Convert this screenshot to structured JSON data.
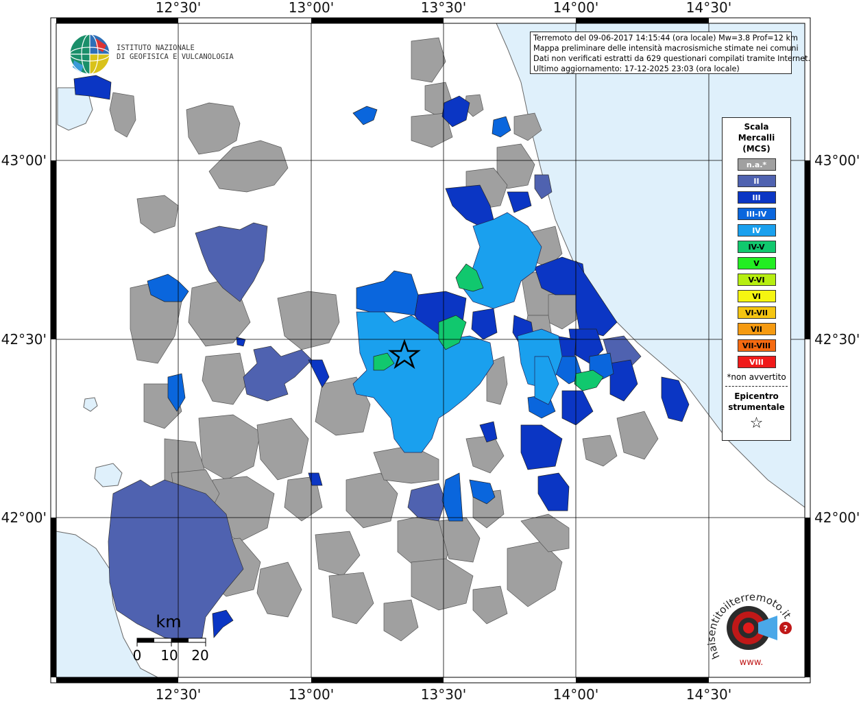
{
  "info": {
    "line1": "Terremoto del 09-06-2017 14:15:44 (ora locale) Mw=3.8 Prof=12 km",
    "line2": "Mappa preliminare delle intensità macrosismiche stimate nei comuni",
    "line3": "Dati non verificati estratti da 629 questionari compilati tramite Internet.",
    "line4": "Ultimo aggiornamento: 17-12-2025 23:03 (ora locale)"
  },
  "institute": {
    "line1": "ISTITUTO NAZIONALE",
    "line2": "DI GEOFISICA E VULCANOLOGIA"
  },
  "axes": {
    "top_ticks": [
      "12°30'",
      "13°00'",
      "13°30'",
      "14°00'",
      "14°30'"
    ],
    "bottom_ticks": [
      "12°30'",
      "13°00'",
      "13°30'",
      "14°00'",
      "14°30'"
    ],
    "left_ticks": [
      "43°00'",
      "42°30'",
      "42°00'"
    ],
    "right_ticks": [
      "43°00'",
      "42°30'",
      "42°00'"
    ]
  },
  "legend": {
    "title1": "Scala",
    "title2": "Mercalli",
    "title3": "(MCS)",
    "items": [
      {
        "label": "n.a.*",
        "color": "#a0a0a0",
        "text_color": "#ffffff"
      },
      {
        "label": "II",
        "color": "#4f62b0",
        "text_color": "#ffffff"
      },
      {
        "label": "III",
        "color": "#0b36c4",
        "text_color": "#ffffff"
      },
      {
        "label": "III-IV",
        "color": "#0a66dd",
        "text_color": "#ffffff"
      },
      {
        "label": "IV",
        "color": "#1aa0ee",
        "text_color": "#ffffff"
      },
      {
        "label": "IV-V",
        "color": "#11c86e",
        "text_color": "#000000"
      },
      {
        "label": "V",
        "color": "#22ee22",
        "text_color": "#000000"
      },
      {
        "label": "V-VI",
        "color": "#b6ee11",
        "text_color": "#000000"
      },
      {
        "label": "VI",
        "color": "#f5f511",
        "text_color": "#000000"
      },
      {
        "label": "VI-VII",
        "color": "#f5c511",
        "text_color": "#000000"
      },
      {
        "label": "VII",
        "color": "#f59a11",
        "text_color": "#000000"
      },
      {
        "label": "VII-VIII",
        "color": "#f56a11",
        "text_color": "#000000"
      },
      {
        "label": "VIII",
        "color": "#f01a1a",
        "text_color": "#ffffff"
      }
    ],
    "note": "*non avvertito",
    "epicenter1": "Epicentro",
    "epicenter2": "strumentale",
    "epicenter_symbol": "☆"
  },
  "scale": {
    "unit": "km",
    "labels": [
      "0",
      "10",
      "20"
    ]
  },
  "site_logo": {
    "text": "haisentitoilterremoto.it",
    "prefix": "www."
  },
  "colors": {
    "sea": "#dff0fb",
    "na": "#a0a0a0",
    "ii": "#4f62b0",
    "iii": "#0b36c4",
    "iii_iv": "#0a66dd",
    "iv": "#1aa0ee",
    "iv_v": "#11c86e"
  }
}
